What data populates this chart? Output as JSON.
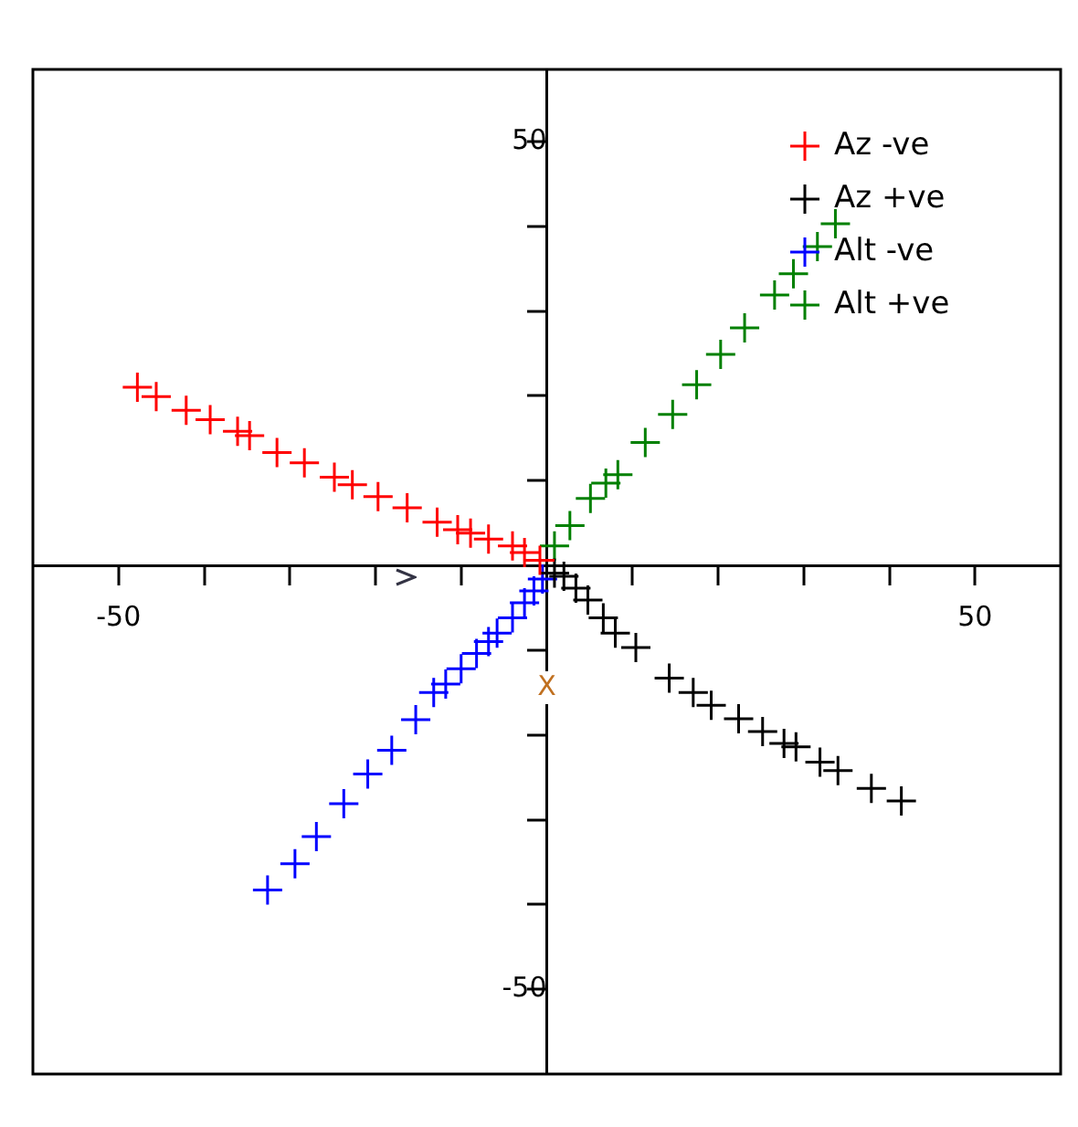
{
  "chart_data": {
    "type": "scatter",
    "xlabel": "X",
    "marker": "cross",
    "legend": "top right",
    "grid": false,
    "xlim": [
      -60,
      60
    ],
    "ylim": [
      -60,
      58.5
    ],
    "xticks": [
      {
        "value": -50,
        "label": "-50"
      },
      {
        "value": -40,
        "label": null
      },
      {
        "value": -30,
        "label": null
      },
      {
        "value": -20,
        "label": null
      },
      {
        "value": -10,
        "label": null
      },
      {
        "value": 10,
        "label": null
      },
      {
        "value": 20,
        "label": null
      },
      {
        "value": 30,
        "label": null
      },
      {
        "value": 40,
        "label": null
      },
      {
        "value": 50,
        "label": "50"
      }
    ],
    "yticks": [
      {
        "value": -50,
        "label": "-50"
      },
      {
        "value": -40,
        "label": null
      },
      {
        "value": -30,
        "label": null
      },
      {
        "value": -20,
        "label": null
      },
      {
        "value": -10,
        "label": null
      },
      {
        "value": 10,
        "label": null
      },
      {
        "value": 20,
        "label": null
      },
      {
        "value": 30,
        "label": null
      },
      {
        "value": 40,
        "label": null
      },
      {
        "value": 50,
        "label": "50"
      }
    ],
    "series": [
      {
        "name": "Az -ve",
        "color": "#ff0000",
        "x": [
          -47.8,
          -45.6,
          -42.1,
          -39.3,
          -36.1,
          -34.7,
          -31.5,
          -28.3,
          -24.8,
          -22.7,
          -19.7,
          -16.3,
          -12.8,
          -10.4,
          -8.9,
          -6.8,
          -4,
          -2.6,
          -0.8
        ],
        "values": [
          21,
          19.9,
          18.3,
          17.2,
          15.8,
          15.3,
          13.3,
          12.1,
          10.4,
          9.5,
          8.1,
          6.8,
          5.1,
          4.2,
          3.8,
          3.1,
          2.3,
          1.5,
          0.6
        ]
      },
      {
        "name": "Az +ve",
        "color": "#000000",
        "x": [
          0.9,
          2,
          3.4,
          4.8,
          6.6,
          8,
          10.4,
          14.3,
          17.1,
          19.2,
          22.4,
          25.2,
          27.7,
          29.1,
          31.9,
          34,
          37.9,
          41.4
        ],
        "values": [
          -0.9,
          -1.3,
          -2.7,
          -4.1,
          -6.2,
          -8,
          -9.7,
          -13.3,
          -15,
          -16.5,
          -18.1,
          -19.6,
          -21,
          -21.4,
          -23.2,
          -24.2,
          -26.3,
          -27.8
        ]
      },
      {
        "name": "Alt -ve",
        "color": "#0000ff",
        "x": [
          -32.6,
          -29.4,
          -26.9,
          -23.7,
          -20.9,
          -18.1,
          -15.3,
          -13.2,
          -11.8,
          -10,
          -8.2,
          -6.8,
          -5.8,
          -4,
          -2.6,
          -1.5,
          -0.5
        ],
        "values": [
          -38.3,
          -35.2,
          -32,
          -28.1,
          -24.6,
          -21.8,
          -18.2,
          -15,
          -14,
          -12.2,
          -10.4,
          -9,
          -8,
          -6.2,
          -4.4,
          -3,
          -1.6
        ]
      },
      {
        "name": "Alt +ve",
        "color": "#008000",
        "x": [
          0.9,
          2.7,
          5.1,
          6.9,
          8.3,
          11.5,
          14.7,
          17.5,
          20.3,
          23.1,
          26.6,
          28.8,
          31.6,
          33.7
        ],
        "values": [
          2.3,
          4.7,
          7.9,
          9.7,
          10.7,
          14.5,
          17.8,
          21.3,
          24.9,
          28,
          31.9,
          34.4,
          37.6,
          40.3
        ]
      }
    ]
  }
}
